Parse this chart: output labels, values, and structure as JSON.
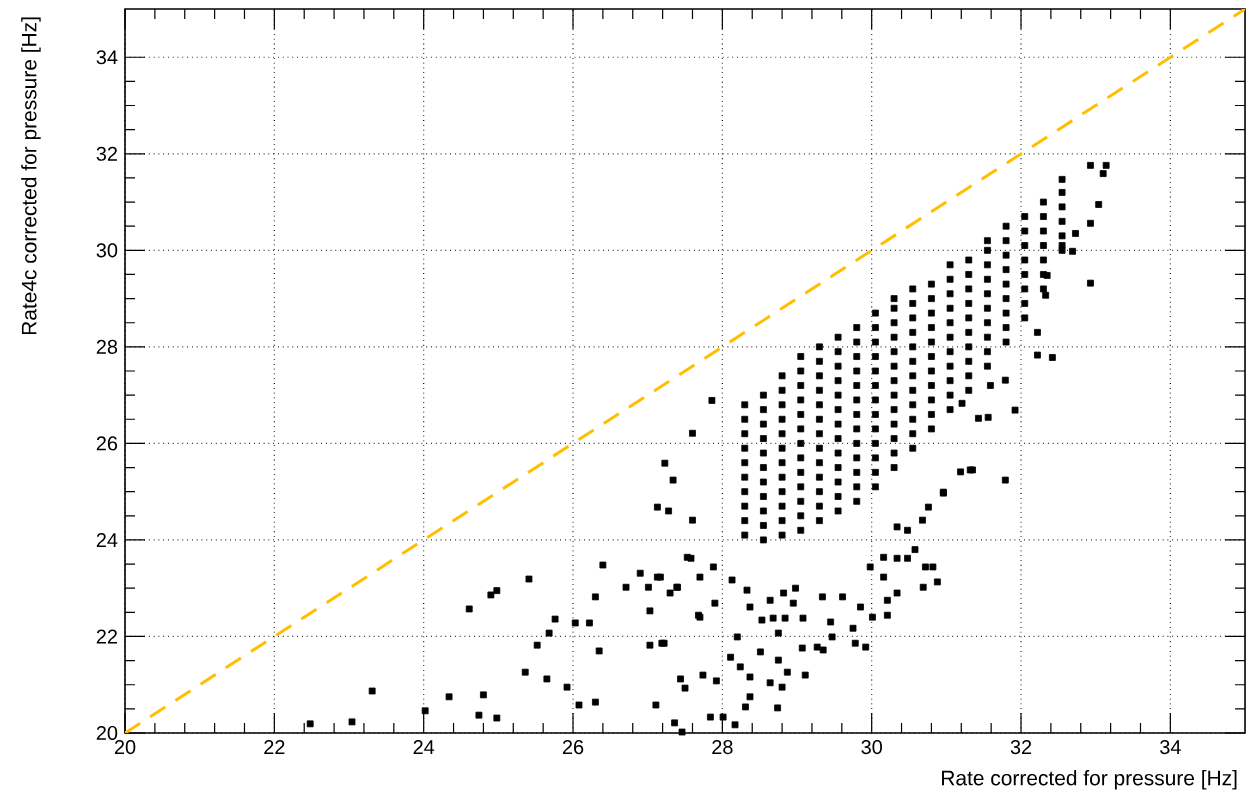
{
  "chart_data": {
    "type": "scatter",
    "xlabel": "Rate corrected for pressure [Hz]",
    "ylabel": "Rate4c corrected for pressure [Hz]",
    "xlim": [
      20,
      35
    ],
    "ylim": [
      20,
      35
    ],
    "xticks": [
      20,
      22,
      24,
      26,
      28,
      30,
      32,
      34
    ],
    "yticks": [
      20,
      22,
      24,
      26,
      28,
      30,
      32,
      34
    ],
    "grid": true,
    "series": [
      {
        "marker": "square",
        "color": "#000000",
        "x": [
          22.48,
          23.04,
          23.31,
          24.02,
          24.34,
          24.8,
          24.74,
          24.98,
          24.61,
          24.9,
          24.98,
          25.41,
          25.76,
          25.68,
          25.52,
          25.36,
          25.65,
          25.92,
          26.03,
          26.22,
          26.35,
          26.3,
          26.4,
          26.08,
          26.3,
          26.71,
          26.9,
          27.17,
          27.01,
          27.03,
          27.03,
          27.22,
          27.3,
          27.39,
          27.11,
          27.44,
          27.36,
          27.46,
          27.5,
          27.74,
          27.84,
          27.92,
          27.7,
          27.58,
          27.23,
          27.13,
          27.28,
          27.6,
          27.13,
          27.4,
          27.68,
          27.19,
          27.9,
          28.11,
          28.24,
          28.37,
          28.37,
          28.31,
          28.74,
          28.17,
          28.01,
          28.64,
          28.8,
          28.87,
          29.11,
          28.75,
          28.51,
          28.2,
          28.53,
          28.37,
          28.68,
          28.84,
          28.75,
          29.07,
          29.27,
          29.35,
          29.47,
          29.45,
          29.78,
          29.92,
          29.75,
          30.01,
          30.21,
          30.21,
          30.34,
          30.69,
          30.88,
          30.72,
          30.82,
          30.48,
          30.58,
          30.34,
          30.16,
          30.16,
          29.98,
          29.85,
          29.61,
          29.34,
          29.08,
          28.95,
          28.64,
          28.82,
          28.98,
          28.33,
          28.13,
          27.88,
          27.7,
          27.53,
          30.96,
          31.32,
          31.19,
          30.76,
          30.68,
          30.48,
          30.34,
          33.14,
          32.93,
          33.1,
          32.55,
          32.93,
          32.73,
          32.69,
          32.93,
          32.55,
          33.04,
          32.35,
          32.33,
          32.22,
          32.22,
          32.42,
          31.79,
          31.59,
          31.92,
          31.79,
          31.21,
          31.35,
          30.96,
          31.43,
          31.56,
          27.86,
          27.6,
          27.34,
          28.3,
          28.3,
          28.3,
          28.3,
          28.3,
          28.3,
          28.3,
          28.3,
          28.3,
          28.3,
          28.55,
          28.55,
          28.55,
          28.55,
          28.55,
          28.55,
          28.55,
          28.55,
          28.55,
          28.55,
          28.55,
          28.8,
          28.8,
          28.8,
          28.8,
          28.8,
          28.8,
          28.8,
          28.8,
          28.8,
          28.8,
          28.8,
          28.8,
          29.05,
          29.05,
          29.05,
          29.05,
          29.05,
          29.05,
          29.05,
          29.05,
          29.05,
          29.05,
          29.05,
          29.05,
          29.05,
          29.3,
          29.3,
          29.3,
          29.3,
          29.3,
          29.3,
          29.3,
          29.3,
          29.3,
          29.3,
          29.3,
          29.3,
          29.3,
          29.55,
          29.55,
          29.55,
          29.55,
          29.55,
          29.55,
          29.55,
          29.55,
          29.55,
          29.55,
          29.55,
          29.55,
          29.55,
          29.8,
          29.8,
          29.8,
          29.8,
          29.8,
          29.8,
          29.8,
          29.8,
          29.8,
          29.8,
          29.8,
          29.8,
          29.8,
          30.05,
          30.05,
          30.05,
          30.05,
          30.05,
          30.05,
          30.05,
          30.05,
          30.05,
          30.05,
          30.05,
          30.05,
          30.05,
          30.3,
          30.3,
          30.3,
          30.3,
          30.3,
          30.3,
          30.3,
          30.3,
          30.3,
          30.3,
          30.3,
          30.3,
          30.3,
          30.55,
          30.55,
          30.55,
          30.55,
          30.55,
          30.55,
          30.55,
          30.55,
          30.55,
          30.55,
          30.55,
          30.55,
          30.8,
          30.8,
          30.8,
          30.8,
          30.8,
          30.8,
          30.8,
          30.8,
          30.8,
          30.8,
          30.8,
          31.05,
          31.05,
          31.05,
          31.05,
          31.05,
          31.05,
          31.05,
          31.05,
          31.05,
          31.05,
          31.05,
          31.3,
          31.3,
          31.3,
          31.3,
          31.3,
          31.3,
          31.3,
          31.3,
          31.3,
          31.3,
          31.55,
          31.55,
          31.55,
          31.55,
          31.55,
          31.55,
          31.55,
          31.55,
          31.55,
          31.55,
          31.8,
          31.8,
          31.8,
          31.8,
          31.8,
          31.8,
          31.8,
          31.8,
          31.8,
          32.05,
          32.05,
          32.05,
          32.05,
          32.05,
          32.05,
          32.05,
          32.05,
          32.3,
          32.3,
          32.3,
          32.3,
          32.3,
          32.3,
          32.3,
          32.55,
          32.55,
          32.55,
          32.55,
          32.55
        ],
        "values": [
          20.19,
          20.23,
          20.87,
          20.46,
          20.75,
          20.79,
          20.37,
          20.31,
          22.57,
          22.86,
          22.95,
          23.19,
          22.36,
          22.07,
          21.82,
          21.26,
          21.12,
          20.95,
          22.28,
          22.28,
          21.7,
          22.82,
          23.48,
          20.58,
          20.64,
          23.02,
          23.31,
          23.23,
          23.02,
          22.53,
          21.82,
          21.86,
          22.9,
          23.02,
          20.58,
          21.12,
          20.21,
          20.02,
          20.93,
          21.2,
          20.33,
          21.08,
          22.4,
          23.62,
          25.59,
          24.68,
          24.6,
          24.41,
          23.23,
          23.02,
          22.44,
          21.86,
          22.69,
          21.57,
          21.37,
          21.16,
          20.75,
          20.54,
          20.52,
          20.17,
          20.33,
          21.04,
          20.95,
          21.26,
          21.2,
          21.51,
          21.68,
          21.99,
          22.34,
          22.61,
          22.38,
          22.38,
          22.07,
          21.76,
          21.78,
          21.72,
          21.99,
          22.3,
          21.86,
          21.78,
          22.17,
          22.4,
          22.44,
          22.75,
          22.9,
          23.02,
          23.13,
          23.44,
          23.44,
          23.62,
          23.8,
          23.62,
          23.23,
          23.64,
          23.44,
          22.61,
          22.82,
          22.82,
          22.38,
          22.69,
          22.75,
          22.9,
          23.0,
          22.96,
          23.17,
          23.44,
          23.23,
          23.64,
          24.97,
          25.45,
          25.41,
          24.68,
          24.41,
          24.2,
          24.27,
          31.76,
          31.76,
          31.59,
          31.47,
          30.56,
          30.35,
          29.98,
          29.32,
          30.1,
          30.95,
          29.48,
          29.07,
          28.3,
          27.83,
          27.78,
          27.31,
          27.2,
          26.69,
          25.24,
          26.83,
          25.45,
          24.99,
          26.52,
          26.54,
          26.89,
          26.21,
          25.24,
          24.1,
          24.4,
          24.7,
          25.0,
          25.3,
          25.6,
          25.9,
          26.2,
          26.5,
          26.8,
          24.0,
          24.3,
          24.6,
          24.9,
          25.2,
          25.5,
          25.8,
          26.1,
          26.4,
          26.7,
          27.0,
          24.1,
          24.4,
          24.7,
          25.0,
          25.3,
          25.6,
          25.9,
          26.2,
          26.5,
          26.8,
          27.1,
          27.4,
          24.2,
          24.5,
          24.8,
          25.1,
          25.4,
          25.7,
          26.0,
          26.3,
          26.6,
          26.9,
          27.2,
          27.5,
          27.8,
          24.4,
          24.7,
          25.0,
          25.3,
          25.6,
          25.9,
          26.2,
          26.5,
          26.8,
          27.1,
          27.4,
          27.7,
          28.0,
          24.6,
          24.9,
          25.2,
          25.5,
          25.8,
          26.1,
          26.4,
          26.7,
          27.0,
          27.3,
          27.6,
          27.9,
          28.2,
          24.8,
          25.1,
          25.4,
          25.7,
          26.0,
          26.3,
          26.6,
          26.9,
          27.2,
          27.5,
          27.8,
          28.1,
          28.4,
          25.1,
          25.4,
          25.7,
          26.0,
          26.3,
          26.6,
          26.9,
          27.2,
          27.5,
          27.8,
          28.1,
          28.4,
          28.7,
          25.5,
          25.8,
          26.1,
          26.4,
          26.7,
          27.0,
          27.3,
          27.6,
          27.9,
          28.2,
          28.5,
          28.8,
          29.0,
          25.9,
          26.2,
          26.5,
          26.8,
          27.1,
          27.4,
          27.7,
          28.0,
          28.3,
          28.6,
          28.9,
          29.2,
          26.3,
          26.6,
          26.9,
          27.2,
          27.5,
          27.8,
          28.1,
          28.4,
          28.7,
          29.0,
          29.3,
          26.7,
          27.0,
          27.3,
          27.6,
          27.9,
          28.2,
          28.5,
          28.8,
          29.1,
          29.4,
          29.7,
          27.1,
          27.4,
          27.7,
          28.0,
          28.3,
          28.6,
          28.9,
          29.2,
          29.5,
          29.8,
          27.6,
          27.9,
          28.2,
          28.5,
          28.8,
          29.1,
          29.4,
          29.7,
          30.0,
          30.2,
          28.1,
          28.4,
          28.7,
          29.0,
          29.3,
          29.6,
          29.9,
          30.2,
          30.5,
          28.6,
          28.9,
          29.2,
          29.5,
          29.8,
          30.1,
          30.4,
          30.7,
          29.2,
          29.5,
          29.8,
          30.1,
          30.4,
          30.7,
          31.0,
          30.0,
          30.3,
          30.6,
          30.9,
          31.2
        ]
      },
      {
        "type": "line",
        "line_style": "dashed",
        "color": "#ffbf00",
        "x": [
          20,
          35
        ],
        "values": [
          20,
          35
        ]
      }
    ]
  }
}
